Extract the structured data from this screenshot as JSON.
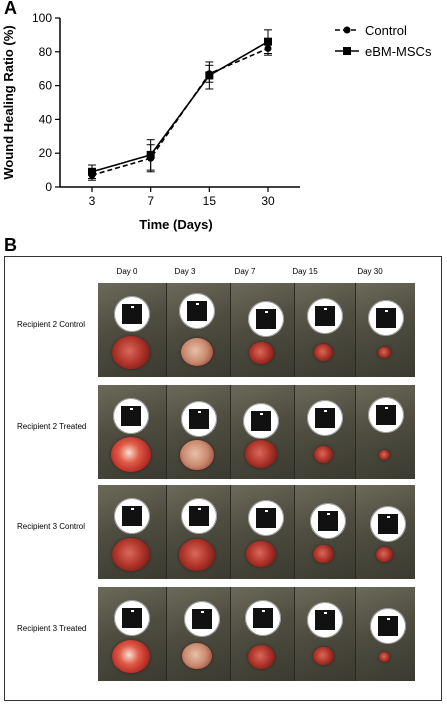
{
  "panel_a_label": "A",
  "panel_b_label": "B",
  "chart_data": {
    "type": "line",
    "categories": [
      "3",
      "7",
      "15",
      "30"
    ],
    "series": [
      {
        "name": "Control",
        "values": [
          7,
          17,
          67,
          82
        ],
        "errors": [
          3,
          8,
          5,
          4
        ],
        "marker": "circle",
        "line": "dashed"
      },
      {
        "name": "eBM-MSCs",
        "values": [
          9,
          19,
          66,
          86
        ],
        "errors": [
          4,
          9,
          8,
          7
        ],
        "marker": "square",
        "line": "solid"
      }
    ],
    "xlabel": "Time (Days)",
    "ylabel": "Wound Healing Ratio (%)",
    "ylim": [
      0,
      100
    ],
    "yticks": [
      "0",
      "20",
      "40",
      "60",
      "80",
      "100"
    ],
    "legend_position": "top-right",
    "grid": false
  },
  "photo_panel": {
    "days": [
      "Day 0",
      "Day 3",
      "Day 7",
      "Day 15",
      "Day 30"
    ],
    "rows": [
      {
        "label": "Recipient 2 Control",
        "wound_scale": [
          1.0,
          0.85,
          0.65,
          0.5,
          0.35
        ]
      },
      {
        "label": "Recipient 2 Treated",
        "wound_scale": [
          1.05,
          0.9,
          0.85,
          0.5,
          0.3
        ]
      },
      {
        "label": "Recipient 3 Control",
        "wound_scale": [
          1.0,
          0.95,
          0.8,
          0.55,
          0.45
        ]
      },
      {
        "label": "Recipient 3 Treated",
        "wound_scale": [
          1.0,
          0.8,
          0.7,
          0.55,
          0.3
        ]
      }
    ]
  }
}
